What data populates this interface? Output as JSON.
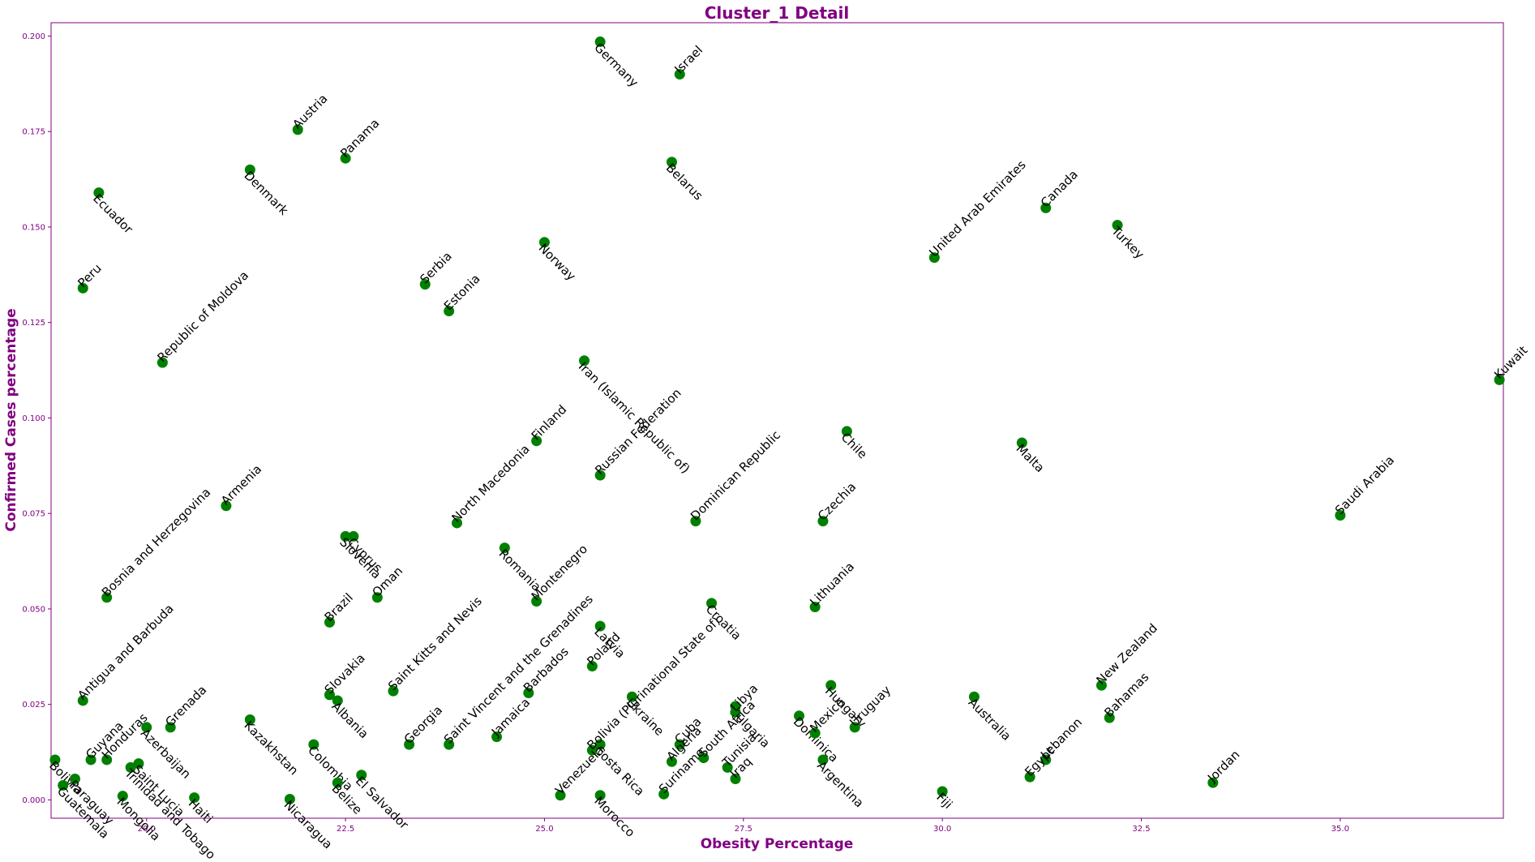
{
  "chart_data": {
    "type": "scatter",
    "title": "Cluster_1 Detail",
    "xlabel": "Obesity Percentage",
    "ylabel": "Confirmed Cases percentage",
    "xlim": [
      18.8,
      37.05
    ],
    "ylim": [
      -0.0048,
      0.2035
    ],
    "xticks": [
      {
        "v": 20.0,
        "label": "20.0"
      },
      {
        "v": 22.5,
        "label": "22.5"
      },
      {
        "v": 25.0,
        "label": "25.0"
      },
      {
        "v": 27.5,
        "label": "27.5"
      },
      {
        "v": 30.0,
        "label": "30.0"
      },
      {
        "v": 32.5,
        "label": "32.5"
      },
      {
        "v": 35.0,
        "label": "35.0"
      }
    ],
    "yticks": [
      {
        "v": 0.0,
        "label": "0.000"
      },
      {
        "v": 0.025,
        "label": "0.025"
      },
      {
        "v": 0.05,
        "label": "0.050"
      },
      {
        "v": 0.075,
        "label": "0.075"
      },
      {
        "v": 0.1,
        "label": "0.100"
      },
      {
        "v": 0.125,
        "label": "0.125"
      },
      {
        "v": 0.15,
        "label": "0.150"
      },
      {
        "v": 0.175,
        "label": "0.175"
      },
      {
        "v": 0.2,
        "label": "0.200"
      }
    ],
    "grid": false,
    "marker_color": "#008000",
    "accent_color": "#800080",
    "points": [
      {
        "label": "Germany",
        "x": 25.7,
        "y": 0.1985,
        "dir": "down"
      },
      {
        "label": "Israel",
        "x": 26.7,
        "y": 0.19,
        "dir": "up"
      },
      {
        "label": "Austria",
        "x": 21.9,
        "y": 0.1755,
        "dir": "up"
      },
      {
        "label": "Panama",
        "x": 22.5,
        "y": 0.168,
        "dir": "up"
      },
      {
        "label": "Belarus",
        "x": 26.6,
        "y": 0.167,
        "dir": "down"
      },
      {
        "label": "Denmark",
        "x": 21.3,
        "y": 0.165,
        "dir": "down"
      },
      {
        "label": "Ecuador",
        "x": 19.4,
        "y": 0.159,
        "dir": "down"
      },
      {
        "label": "Canada",
        "x": 31.3,
        "y": 0.155,
        "dir": "up"
      },
      {
        "label": "Turkey",
        "x": 32.2,
        "y": 0.1505,
        "dir": "down"
      },
      {
        "label": "Norway",
        "x": 25.0,
        "y": 0.146,
        "dir": "down"
      },
      {
        "label": "United Arab Emirates",
        "x": 29.9,
        "y": 0.142,
        "dir": "up"
      },
      {
        "label": "Serbia",
        "x": 23.5,
        "y": 0.135,
        "dir": "up"
      },
      {
        "label": "Peru",
        "x": 19.2,
        "y": 0.134,
        "dir": "up"
      },
      {
        "label": "Estonia",
        "x": 23.8,
        "y": 0.128,
        "dir": "up"
      },
      {
        "label": "Iran (Islamic Republic of)",
        "x": 25.5,
        "y": 0.115,
        "dir": "down"
      },
      {
        "label": "Republic of Moldova",
        "x": 20.2,
        "y": 0.1145,
        "dir": "up"
      },
      {
        "label": "Kuwait",
        "x": 37.0,
        "y": 0.11,
        "dir": "up"
      },
      {
        "label": "Chile",
        "x": 28.8,
        "y": 0.0965,
        "dir": "down"
      },
      {
        "label": "Finland",
        "x": 24.9,
        "y": 0.094,
        "dir": "up"
      },
      {
        "label": "Malta",
        "x": 31.0,
        "y": 0.0935,
        "dir": "down"
      },
      {
        "label": "Russian Federation",
        "x": 25.7,
        "y": 0.085,
        "dir": "up"
      },
      {
        "label": "Armenia",
        "x": 21.0,
        "y": 0.077,
        "dir": "up"
      },
      {
        "label": "Saudi Arabia",
        "x": 35.0,
        "y": 0.0745,
        "dir": "up"
      },
      {
        "label": "Dominican Republic",
        "x": 26.9,
        "y": 0.073,
        "dir": "up"
      },
      {
        "label": "Czechia",
        "x": 28.5,
        "y": 0.073,
        "dir": "up"
      },
      {
        "label": "North Macedonia",
        "x": 23.9,
        "y": 0.0725,
        "dir": "up"
      },
      {
        "label": "Cyprus",
        "x": 22.6,
        "y": 0.069,
        "dir": "down"
      },
      {
        "label": "Slovenia",
        "x": 22.5,
        "y": 0.069,
        "dir": "down"
      },
      {
        "label": "Romania",
        "x": 24.5,
        "y": 0.066,
        "dir": "down"
      },
      {
        "label": "Bosnia and Herzegovina",
        "x": 19.5,
        "y": 0.053,
        "dir": "up"
      },
      {
        "label": "Oman",
        "x": 22.9,
        "y": 0.053,
        "dir": "up"
      },
      {
        "label": "Montenegro",
        "x": 24.9,
        "y": 0.052,
        "dir": "up"
      },
      {
        "label": "Croatia",
        "x": 27.1,
        "y": 0.0515,
        "dir": "down"
      },
      {
        "label": "Lithuania",
        "x": 28.4,
        "y": 0.0505,
        "dir": "up"
      },
      {
        "label": "Brazil",
        "x": 22.3,
        "y": 0.0465,
        "dir": "up"
      },
      {
        "label": "Latvia",
        "x": 25.7,
        "y": 0.0455,
        "dir": "down"
      },
      {
        "label": "Poland",
        "x": 25.6,
        "y": 0.035,
        "dir": "up"
      },
      {
        "label": "Hungary",
        "x": 28.6,
        "y": 0.03,
        "dir": "down"
      },
      {
        "label": "New Zealand",
        "x": 32.0,
        "y": 0.03,
        "dir": "up"
      },
      {
        "label": "Saint Kitts and Nevis",
        "x": 23.1,
        "y": 0.0285,
        "dir": "up"
      },
      {
        "label": "Barbados",
        "x": 24.8,
        "y": 0.028,
        "dir": "up"
      },
      {
        "label": "Slovakia",
        "x": 22.3,
        "y": 0.0275,
        "dir": "up"
      },
      {
        "label": "Ukraine",
        "x": 26.1,
        "y": 0.027,
        "dir": "down"
      },
      {
        "label": "Australia",
        "x": 30.4,
        "y": 0.027,
        "dir": "down"
      },
      {
        "label": "Antigua and Barbuda",
        "x": 19.2,
        "y": 0.026,
        "dir": "up"
      },
      {
        "label": "Albania",
        "x": 22.4,
        "y": 0.026,
        "dir": "down"
      },
      {
        "label": "Bulgaria",
        "x": 27.4,
        "y": 0.0245,
        "dir": "down"
      },
      {
        "label": "Libya",
        "x": 27.4,
        "y": 0.023,
        "dir": "up"
      },
      {
        "label": "Dominica",
        "x": 28.2,
        "y": 0.022,
        "dir": "down"
      },
      {
        "label": "Bahamas",
        "x": 32.1,
        "y": 0.0215,
        "dir": "up"
      },
      {
        "label": "Kazakhstan",
        "x": 21.3,
        "y": 0.021,
        "dir": "down"
      },
      {
        "label": "Azerbaijan",
        "x": 20.0,
        "y": 0.019,
        "dir": "down"
      },
      {
        "label": "Grenada",
        "x": 20.3,
        "y": 0.019,
        "dir": "up"
      },
      {
        "label": "Uruguay",
        "x": 28.9,
        "y": 0.019,
        "dir": "up"
      },
      {
        "label": "Mexico",
        "x": 28.4,
        "y": 0.0175,
        "dir": "up"
      },
      {
        "label": "Jamaica",
        "x": 24.4,
        "y": 0.0165,
        "dir": "up"
      },
      {
        "label": "Georgia",
        "x": 23.3,
        "y": 0.0145,
        "dir": "up"
      },
      {
        "label": "Saint Vincent and the Grenadines",
        "x": 23.8,
        "y": 0.0145,
        "dir": "up"
      },
      {
        "label": "Colombia",
        "x": 22.1,
        "y": 0.0145,
        "dir": "down"
      },
      {
        "label": "Costa Rica",
        "x": 25.7,
        "y": 0.0145,
        "dir": "down"
      },
      {
        "label": "Cuba",
        "x": 26.7,
        "y": 0.0145,
        "dir": "up"
      },
      {
        "label": "Bolivia (Plurinational State of)",
        "x": 25.6,
        "y": 0.013,
        "dir": "up"
      },
      {
        "label": "Algeria",
        "x": 26.6,
        "y": 0.01,
        "dir": "up"
      },
      {
        "label": "South Africa",
        "x": 27.0,
        "y": 0.011,
        "dir": "up"
      },
      {
        "label": "Honduras",
        "x": 19.5,
        "y": 0.0105,
        "dir": "up"
      },
      {
        "label": "Guyana",
        "x": 19.3,
        "y": 0.0105,
        "dir": "up"
      },
      {
        "label": "Bolivia",
        "x": 18.85,
        "y": 0.0105,
        "dir": "down"
      },
      {
        "label": "Lebanon",
        "x": 31.3,
        "y": 0.0105,
        "dir": "up"
      },
      {
        "label": "Argentina",
        "x": 28.5,
        "y": 0.0105,
        "dir": "down"
      },
      {
        "label": "Saint Lucia",
        "x": 19.9,
        "y": 0.0095,
        "dir": "down"
      },
      {
        "label": "Trinidad and Tobago",
        "x": 19.8,
        "y": 0.0085,
        "dir": "down"
      },
      {
        "label": "Tunisia",
        "x": 27.3,
        "y": 0.0085,
        "dir": "up"
      },
      {
        "label": "El Salvador",
        "x": 22.7,
        "y": 0.0065,
        "dir": "down"
      },
      {
        "label": "Egypt",
        "x": 31.1,
        "y": 0.006,
        "dir": "up"
      },
      {
        "label": "Iraq",
        "x": 27.4,
        "y": 0.0055,
        "dir": "up"
      },
      {
        "label": "Paraguay",
        "x": 19.1,
        "y": 0.0055,
        "dir": "down"
      },
      {
        "label": "Jordan",
        "x": 33.4,
        "y": 0.0045,
        "dir": "up"
      },
      {
        "label": "Belize",
        "x": 22.4,
        "y": 0.0045,
        "dir": "down"
      },
      {
        "label": "Guatemala",
        "x": 18.95,
        "y": 0.0038,
        "dir": "down"
      },
      {
        "label": "Fiji",
        "x": 30.0,
        "y": 0.0022,
        "dir": "down"
      },
      {
        "label": "Suriname",
        "x": 26.5,
        "y": 0.0015,
        "dir": "up"
      },
      {
        "label": "Venezuela",
        "x": 25.2,
        "y": 0.0012,
        "dir": "up"
      },
      {
        "label": "Morocco",
        "x": 25.7,
        "y": 0.0012,
        "dir": "down"
      },
      {
        "label": "Mongolia",
        "x": 19.7,
        "y": 0.001,
        "dir": "down"
      },
      {
        "label": "Haiti",
        "x": 20.6,
        "y": 0.0006,
        "dir": "down"
      },
      {
        "label": "Nicaragua",
        "x": 21.8,
        "y": 0.0002,
        "dir": "down"
      }
    ]
  }
}
